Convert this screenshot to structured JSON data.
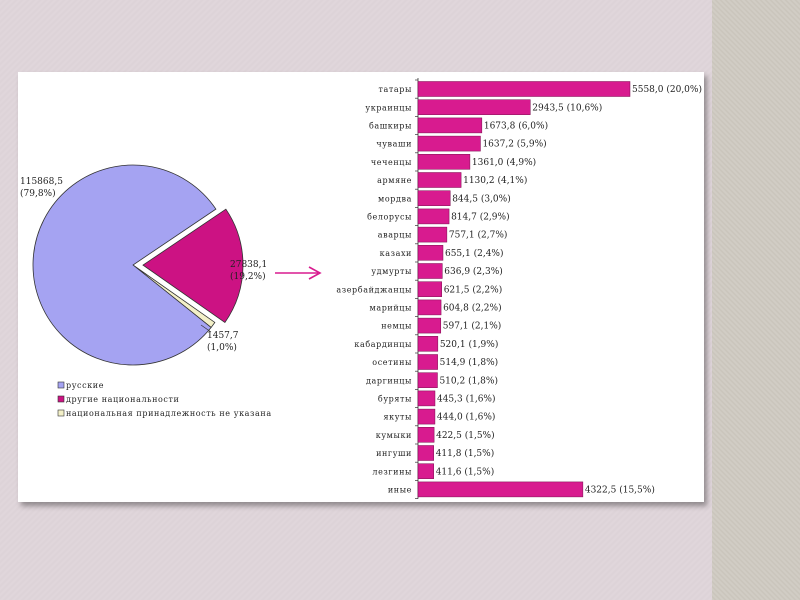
{
  "colors": {
    "russian": "#a5a3f2",
    "other": "#cc1283",
    "unspecified": "#f3f0c8",
    "bar": "#d81b8f",
    "arrow": "#d81b8f"
  },
  "chart_data": [
    {
      "type": "pie",
      "categories": [
        "русские",
        "другие национальности",
        "национальная принадлежность не указана"
      ],
      "values": [
        115868.5,
        27838.1,
        1457.7
      ],
      "percents": [
        79.8,
        19.2,
        1.0
      ],
      "data_labels": [
        {
          "value": "115868,5",
          "percent": "(79,8%)"
        },
        {
          "value": "27838,1",
          "percent": "(19,2%)"
        },
        {
          "value": "1457,7",
          "percent": "(1,0%)"
        }
      ],
      "legend": [
        "русские",
        "другие национальности",
        "национальная принадлежность не указана"
      ],
      "legend_position": "bottom-left"
    },
    {
      "type": "bar",
      "orientation": "horizontal",
      "categories": [
        "татары",
        "украинцы",
        "башкиры",
        "чуваши",
        "чеченцы",
        "армяне",
        "мордва",
        "белорусы",
        "аварцы",
        "казахи",
        "удмурты",
        "азербайджанцы",
        "марийцы",
        "немцы",
        "кабардинцы",
        "осетины",
        "даргинцы",
        "буряты",
        "якуты",
        "кумыки",
        "ингуши",
        "лезгины",
        "иные"
      ],
      "values": [
        5558.0,
        2943.5,
        1673.8,
        1637.2,
        1361.0,
        1130.2,
        844.5,
        814.7,
        757.1,
        655.1,
        636.9,
        621.5,
        604.8,
        597.1,
        520.1,
        514.9,
        510.2,
        445.3,
        444.0,
        422.5,
        411.8,
        411.6,
        4322.5
      ],
      "data_labels": [
        "5558,0 (20,0%)",
        "2943,5 (10,6%)",
        "1673,8 (6,0%)",
        "1637,2 (5,9%)",
        "1361,0 (4,9%)",
        "1130,2 (4,1%)",
        "844,5 (3,0%)",
        "814,7 (2,9%)",
        "757,1 (2,7%)",
        "655,1 (2,4%)",
        "636,9 (2,3%)",
        "621,5 (2,2%)",
        "604,8 (2,2%)",
        "597,1 (2,1%)",
        "520,1 (1,9%)",
        "514,9 (1,8%)",
        "510,2 (1,8%)",
        "445,3 (1,6%)",
        "444,0 (1,6%)",
        "422,5 (1,5%)",
        "411,8 (1,5%)",
        "411,6 (1,5%)",
        "4322,5 (15,5%)"
      ],
      "xlim": [
        0,
        5558.0
      ],
      "grid": false
    }
  ]
}
